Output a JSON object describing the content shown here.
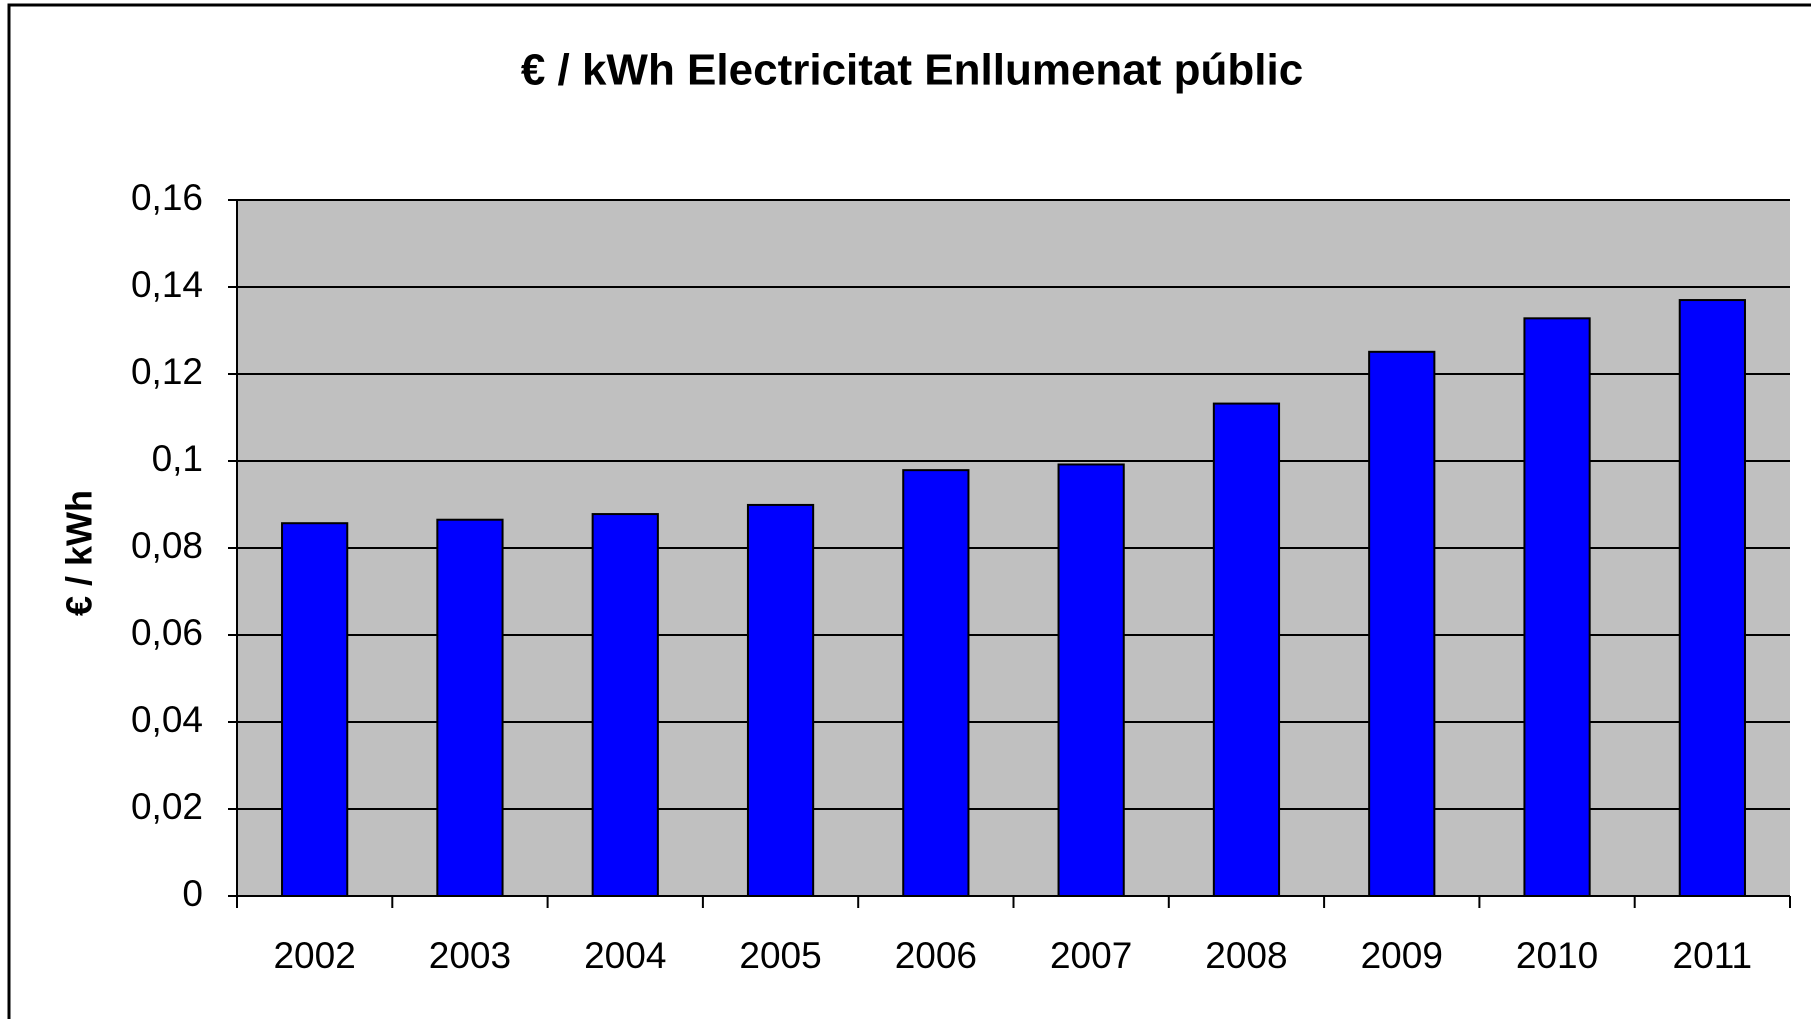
{
  "chart_data": {
    "type": "bar",
    "title": "€ / kWh Electricitat Enllumenat  públic",
    "y_label": "€ / kWh",
    "categories": [
      "2002",
      "2003",
      "2004",
      "2005",
      "2006",
      "2007",
      "2008",
      "2009",
      "2010",
      "2011"
    ],
    "values": [
      0.0857,
      0.0865,
      0.0878,
      0.0899,
      0.0979,
      0.0992,
      0.1132,
      0.1251,
      0.1328,
      0.137
    ],
    "color": "#0000ff",
    "ylim": [
      0,
      0.16
    ],
    "yticks": [
      0,
      {
        "value": 0.02,
        "label": "0,02"
      },
      {
        "value": 0.04,
        "label": "0,04"
      },
      {
        "value": 0.06,
        "label": "0,06"
      },
      {
        "value": 0.08,
        "label": "0,08"
      },
      {
        "value": 0.1,
        "label": "0,1"
      },
      {
        "value": 0.12,
        "label": "0,12"
      },
      {
        "value": 0.14,
        "label": "0,14"
      },
      {
        "value": 0.16,
        "label": "0,16"
      }
    ],
    "grid": true
  }
}
